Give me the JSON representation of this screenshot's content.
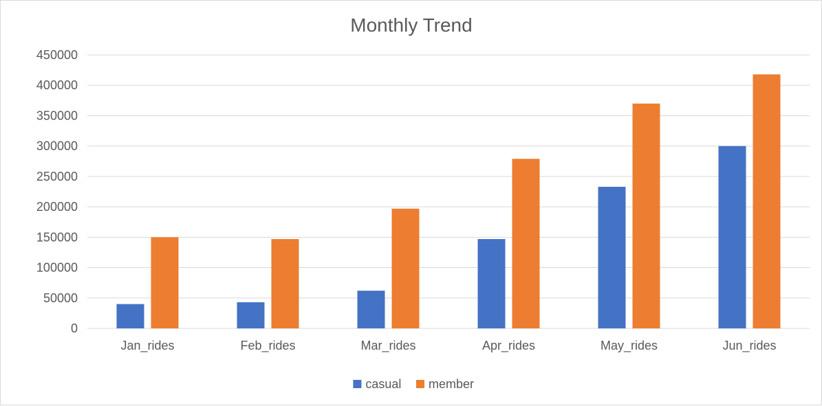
{
  "chart_data": {
    "type": "bar",
    "title": "Monthly Trend",
    "xlabel": "",
    "ylabel": "",
    "categories": [
      "Jan_rides",
      "Feb_rides",
      "Mar_rides",
      "Apr_rides",
      "May_rides",
      "Jun_rides"
    ],
    "series": [
      {
        "name": "casual",
        "color": "#4472C4",
        "values": [
          40000,
          43000,
          62000,
          147000,
          233000,
          300000
        ]
      },
      {
        "name": "member",
        "color": "#ED7D31",
        "values": [
          150000,
          147000,
          197000,
          279000,
          370000,
          418000
        ]
      }
    ],
    "ylim": [
      0,
      450000
    ],
    "yticks": [
      0,
      50000,
      100000,
      150000,
      200000,
      250000,
      300000,
      350000,
      400000,
      450000
    ],
    "grid": true,
    "gridColor": "#d9d9d9",
    "legend": "bottom"
  }
}
